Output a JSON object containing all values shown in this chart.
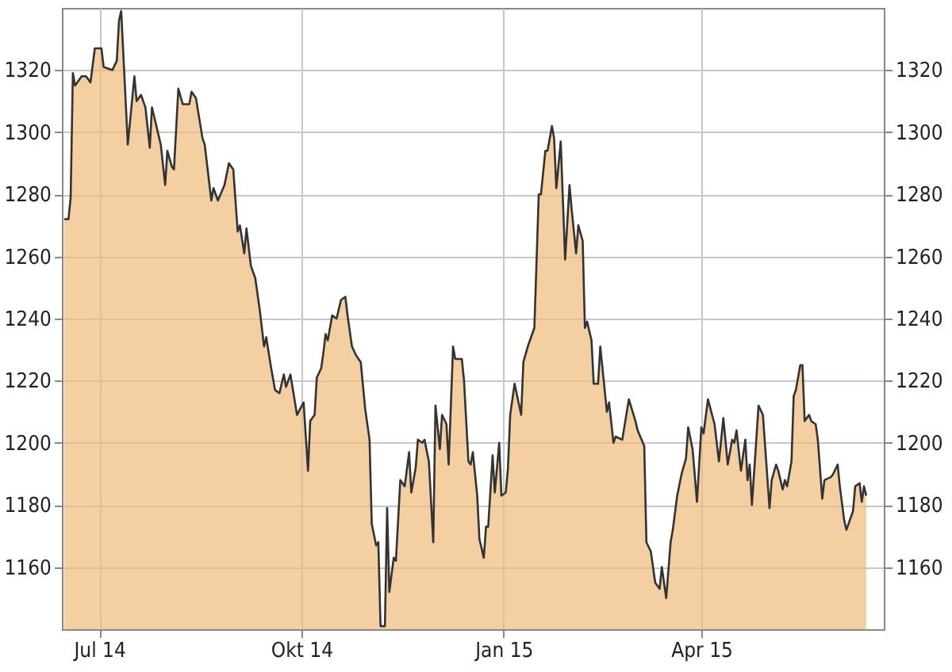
{
  "chart_data": {
    "type": "area",
    "x": [
      "2014-06-15",
      "2014-06-17",
      "2014-06-18",
      "2014-06-19",
      "2014-06-20",
      "2014-06-23",
      "2014-06-25",
      "2014-06-27",
      "2014-06-29",
      "2014-07-02",
      "2014-07-03",
      "2014-07-07",
      "2014-07-09",
      "2014-07-10",
      "2014-07-11",
      "2014-07-14",
      "2014-07-17",
      "2014-07-18",
      "2014-07-20",
      "2014-07-22",
      "2014-07-24",
      "2014-07-25",
      "2014-07-29",
      "2014-07-31",
      "2014-08-01",
      "2014-08-03",
      "2014-08-04",
      "2014-08-06",
      "2014-08-08",
      "2014-08-11",
      "2014-08-12",
      "2014-08-14",
      "2014-08-17",
      "2014-08-18",
      "2014-08-21",
      "2014-08-22",
      "2014-08-24",
      "2014-08-27",
      "2014-08-29",
      "2014-08-31",
      "2014-09-02",
      "2014-09-03",
      "2014-09-05",
      "2014-09-06",
      "2014-09-08",
      "2014-09-10",
      "2014-09-12",
      "2014-09-14",
      "2014-09-15",
      "2014-09-17",
      "2014-09-19",
      "2014-09-21",
      "2014-09-23",
      "2014-09-24",
      "2014-09-26",
      "2014-09-29",
      "2014-10-02",
      "2014-10-04",
      "2014-10-05",
      "2014-10-07",
      "2014-10-08",
      "2014-10-10",
      "2014-10-11",
      "2014-10-12",
      "2014-10-13",
      "2014-10-15",
      "2014-10-17",
      "2014-10-19",
      "2014-10-21",
      "2014-10-22",
      "2014-10-24",
      "2014-10-26",
      "2014-10-28",
      "2014-10-30",
      "2014-11-01",
      "2014-11-02",
      "2014-11-04",
      "2014-11-05",
      "2014-11-06",
      "2014-11-08",
      "2014-11-09",
      "2014-11-10",
      "2014-11-12",
      "2014-11-13",
      "2014-11-15",
      "2014-11-17",
      "2014-11-19",
      "2014-11-20",
      "2014-11-22",
      "2014-11-23",
      "2014-11-25",
      "2014-11-26",
      "2014-11-28",
      "2014-11-30",
      "2014-12-01",
      "2014-12-03",
      "2014-12-04",
      "2014-12-06",
      "2014-12-07",
      "2014-12-09",
      "2014-12-10",
      "2014-12-13",
      "2014-12-14",
      "2014-12-16",
      "2014-12-17",
      "2014-12-18",
      "2014-12-20",
      "2014-12-21",
      "2014-12-23",
      "2014-12-24",
      "2014-12-25",
      "2014-12-27",
      "2014-12-28",
      "2014-12-30",
      "2014-12-31",
      "2015-01-02",
      "2015-01-03",
      "2015-01-04",
      "2015-01-06",
      "2015-01-09",
      "2015-01-10",
      "2015-01-12",
      "2015-01-15",
      "2015-01-17",
      "2015-01-18",
      "2015-01-20",
      "2015-01-21",
      "2015-01-23",
      "2015-01-24",
      "2015-01-25",
      "2015-01-27",
      "2015-01-29",
      "2015-01-31",
      "2015-02-01",
      "2015-02-03",
      "2015-02-04",
      "2015-02-06",
      "2015-02-07",
      "2015-02-08",
      "2015-02-10",
      "2015-02-11",
      "2015-02-13",
      "2015-02-14",
      "2015-02-17",
      "2015-02-18",
      "2015-02-20",
      "2015-02-21",
      "2015-02-24",
      "2015-02-27",
      "2015-03-02",
      "2015-03-03",
      "2015-03-06",
      "2015-03-07",
      "2015-03-09",
      "2015-03-11",
      "2015-03-13",
      "2015-03-14",
      "2015-03-16",
      "2015-03-18",
      "2015-03-19",
      "2015-03-21",
      "2015-03-23",
      "2015-03-25",
      "2015-03-26",
      "2015-03-28",
      "2015-03-30",
      "2015-04-01",
      "2015-04-02",
      "2015-04-04",
      "2015-04-07",
      "2015-04-09",
      "2015-04-11",
      "2015-04-13",
      "2015-04-15",
      "2015-04-16",
      "2015-04-17",
      "2015-04-19",
      "2015-04-21",
      "2015-04-22",
      "2015-04-23",
      "2015-04-24",
      "2015-04-26",
      "2015-04-27",
      "2015-04-29",
      "2015-05-02",
      "2015-05-03",
      "2015-05-05",
      "2015-05-06",
      "2015-05-08",
      "2015-05-09",
      "2015-05-10",
      "2015-05-12",
      "2015-05-13",
      "2015-05-14",
      "2015-05-16",
      "2015-05-17",
      "2015-05-18",
      "2015-05-20",
      "2015-05-21",
      "2015-05-23",
      "2015-05-24",
      "2015-05-26",
      "2015-05-27",
      "2015-05-30",
      "2015-05-31",
      "2015-06-02",
      "2015-06-03",
      "2015-06-05",
      "2015-06-06",
      "2015-06-09",
      "2015-06-10",
      "2015-06-12",
      "2015-06-13",
      "2015-06-14",
      "2015-06-15"
    ],
    "series": [
      {
        "color": "#efbb7b",
        "values": [
          1272,
          1272,
          1279,
          1319,
          1315,
          1318,
          1318,
          1316,
          1327,
          1327,
          1321,
          1320,
          1323,
          1336,
          1339,
          1296,
          1318,
          1310,
          1312,
          1308,
          1295,
          1308,
          1296,
          1283,
          1294,
          1289,
          1288,
          1314,
          1309,
          1309,
          1313,
          1311,
          1298,
          1296,
          1278,
          1282,
          1278,
          1283,
          1290,
          1288,
          1268,
          1270,
          1261,
          1269,
          1257,
          1253,
          1243,
          1231,
          1234,
          1225,
          1217,
          1216,
          1222,
          1218,
          1222,
          1209,
          1213,
          1191,
          1207,
          1209,
          1221,
          1224,
          1229,
          1235,
          1233,
          1241,
          1240,
          1246,
          1247,
          1241,
          1231,
          1228,
          1226,
          1211,
          1201,
          1174,
          1167,
          1168,
          1141,
          1141,
          1179,
          1152,
          1163,
          1162,
          1188,
          1186,
          1197,
          1184,
          1192,
          1201,
          1200,
          1201,
          1194,
          1168,
          1212,
          1198,
          1209,
          1206,
          1193,
          1231,
          1227,
          1227,
          1220,
          1194,
          1193,
          1197,
          1183,
          1169,
          1163,
          1173,
          1173,
          1196,
          1184,
          1200,
          1183,
          1184,
          1192,
          1209,
          1219,
          1209,
          1226,
          1231,
          1237,
          1280,
          1280,
          1294,
          1294,
          1302,
          1298,
          1282,
          1297,
          1259,
          1283,
          1275,
          1261,
          1270,
          1265,
          1237,
          1239,
          1233,
          1219,
          1219,
          1231,
          1210,
          1213,
          1200,
          1202,
          1201,
          1214,
          1207,
          1204,
          1199,
          1168,
          1165,
          1155,
          1153,
          1160,
          1150,
          1168,
          1172,
          1183,
          1190,
          1195,
          1205,
          1198,
          1181,
          1205,
          1203,
          1214,
          1206,
          1194,
          1208,
          1193,
          1201,
          1200,
          1204,
          1191,
          1201,
          1188,
          1193,
          1180,
          1201,
          1212,
          1209,
          1179,
          1188,
          1193,
          1191,
          1185,
          1188,
          1186,
          1194,
          1215,
          1217,
          1225,
          1225,
          1207,
          1209,
          1207,
          1206,
          1201,
          1182,
          1188,
          1189,
          1190,
          1193,
          1186,
          1175,
          1172,
          1178,
          1186,
          1187,
          1181,
          1186,
          1183
        ]
      }
    ],
    "xlim": [
      "2014-06-14",
      "2015-06-23"
    ],
    "xticks": [
      {
        "value": "2014-07-01",
        "label": "Jul 14"
      },
      {
        "value": "2014-10-01",
        "label": "Okt 14"
      },
      {
        "value": "2015-01-01",
        "label": "Jan 15"
      },
      {
        "value": "2015-04-01",
        "label": "Apr 15"
      }
    ],
    "ylim": [
      1140,
      1340
    ],
    "yticks": [
      1160,
      1180,
      1200,
      1220,
      1240,
      1260,
      1280,
      1300,
      1320
    ],
    "y2lim": [
      1140,
      1340
    ],
    "y2ticks": [
      1160,
      1180,
      1200,
      1220,
      1240,
      1260,
      1280,
      1300,
      1320
    ],
    "grid": true
  }
}
